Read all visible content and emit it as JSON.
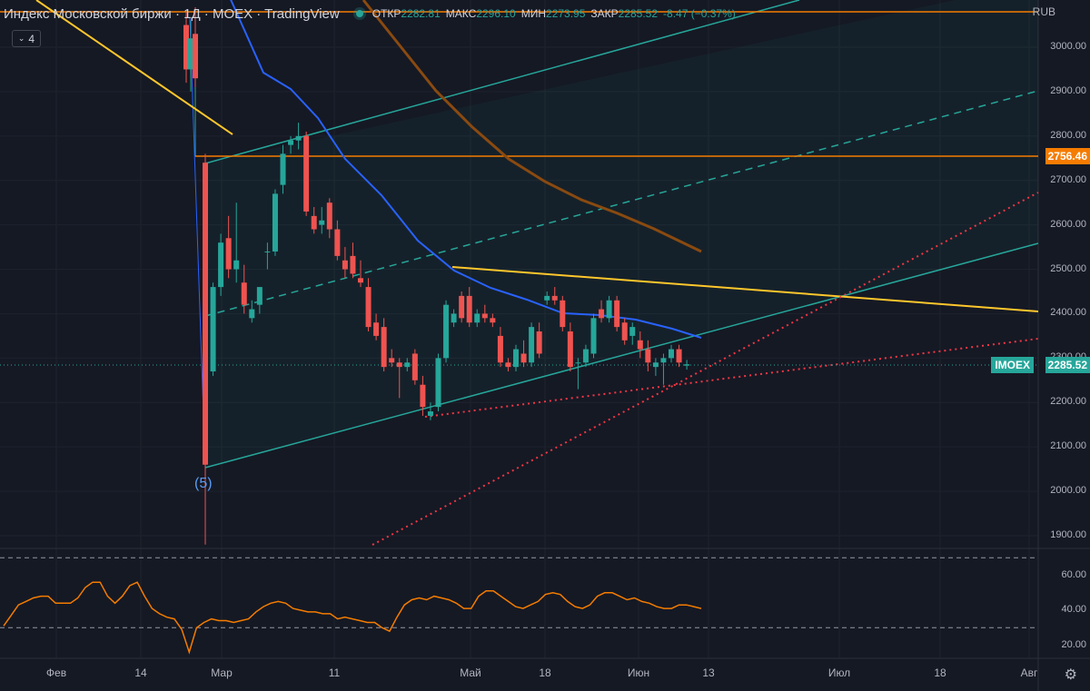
{
  "header": {
    "title": "Индекс Московской биржи · 1Д · MOEX · TradingView",
    "open_label": "ОТКР",
    "open": "2282.81",
    "high_label": "МАКС",
    "high": "2296.10",
    "low_label": "МИН",
    "low": "2273.95",
    "close_label": "ЗАКР",
    "close": "2285.52",
    "change": "-8.47 (−0.37%)",
    "indicators_count": "4"
  },
  "price_scale": {
    "unit": "RUB",
    "labels": [
      "3000.00",
      "2900.00",
      "2800.00",
      "2700.00",
      "2600.00",
      "2500.00",
      "2400.00",
      "2300.00",
      "2200.00",
      "2100.00",
      "2000.00",
      "1900.00"
    ],
    "level_tag": "2756.46",
    "symbol_tag": "IMOEX",
    "last_price_tag": "2285.52"
  },
  "rsi_scale": {
    "labels": [
      "60.00",
      "40.00",
      "20.00"
    ]
  },
  "time_axis": {
    "labels": [
      "Фев",
      "14",
      "Мар",
      "11",
      "Май",
      "18",
      "Июн",
      "13",
      "Июл",
      "18",
      "Авг"
    ]
  },
  "wave_label": "(5)",
  "colors": {
    "up": "#26a69a",
    "down": "#ef5350",
    "background": "#151924",
    "ma_fast": "#2962ff",
    "ma_slow": "#8a4a10",
    "level": "#f57c00",
    "trend_yellow": "#ffc72c",
    "channel": "#26a69a",
    "dotted": "#f23645",
    "rsi": "#f57c00"
  },
  "chart_data": [
    {
      "type": "candlestick",
      "title": "Индекс Московской биржи, 1Д, MOEX",
      "unit": "RUB",
      "ylim": [
        1880,
        3090
      ],
      "candles": [
        [
          3050,
          3080,
          2920,
          2950
        ],
        [
          2950,
          3060,
          2900,
          3020
        ],
        [
          3030,
          3090,
          2910,
          2930
        ],
        [
          2740,
          2760,
          1880,
          2060
        ],
        [
          2270,
          2470,
          2260,
          2460
        ],
        [
          2460,
          2580,
          2440,
          2560
        ],
        [
          2570,
          2620,
          2480,
          2500
        ],
        [
          2500,
          2650,
          2470,
          2520
        ],
        [
          2470,
          2510,
          2400,
          2420
        ],
        [
          2390,
          2430,
          2380,
          2410
        ],
        [
          2420,
          2460,
          2400,
          2460
        ],
        [
          2540,
          2560,
          2500,
          2540
        ],
        [
          2540,
          2680,
          2530,
          2670
        ],
        [
          2690,
          2780,
          2670,
          2760
        ],
        [
          2780,
          2800,
          2760,
          2790
        ],
        [
          2790,
          2830,
          2770,
          2800
        ],
        [
          2800,
          2810,
          2620,
          2630
        ],
        [
          2620,
          2640,
          2580,
          2590
        ],
        [
          2600,
          2640,
          2580,
          2610
        ],
        [
          2650,
          2660,
          2570,
          2590
        ],
        [
          2590,
          2610,
          2520,
          2530
        ],
        [
          2520,
          2550,
          2480,
          2500
        ],
        [
          2530,
          2560,
          2480,
          2490
        ],
        [
          2480,
          2520,
          2460,
          2470
        ],
        [
          2460,
          2480,
          2360,
          2370
        ],
        [
          2380,
          2400,
          2340,
          2350
        ],
        [
          2370,
          2390,
          2270,
          2280
        ],
        [
          2300,
          2320,
          2280,
          2290
        ],
        [
          2290,
          2300,
          2210,
          2280
        ],
        [
          2280,
          2300,
          2270,
          2290
        ],
        [
          2310,
          2320,
          2240,
          2250
        ],
        [
          2240,
          2260,
          2170,
          2190
        ],
        [
          2170,
          2200,
          2160,
          2180
        ],
        [
          2190,
          2310,
          2180,
          2300
        ],
        [
          2300,
          2430,
          2290,
          2420
        ],
        [
          2380,
          2410,
          2370,
          2400
        ],
        [
          2440,
          2450,
          2380,
          2390
        ],
        [
          2440,
          2460,
          2370,
          2380
        ],
        [
          2380,
          2410,
          2370,
          2400
        ],
        [
          2400,
          2420,
          2380,
          2390
        ],
        [
          2390,
          2400,
          2370,
          2380
        ],
        [
          2350,
          2370,
          2280,
          2290
        ],
        [
          2290,
          2300,
          2270,
          2280
        ],
        [
          2280,
          2330,
          2270,
          2320
        ],
        [
          2310,
          2340,
          2280,
          2290
        ],
        [
          2290,
          2380,
          2280,
          2370
        ],
        [
          2360,
          2380,
          2300,
          2310
        ],
        [
          2430,
          2450,
          2420,
          2440
        ],
        [
          2440,
          2460,
          2420,
          2430
        ],
        [
          2430,
          2440,
          2360,
          2370
        ],
        [
          2360,
          2380,
          2270,
          2280
        ],
        [
          2290,
          2300,
          2230,
          2290
        ],
        [
          2290,
          2330,
          2280,
          2320
        ],
        [
          2310,
          2400,
          2300,
          2390
        ],
        [
          2410,
          2430,
          2380,
          2390
        ],
        [
          2390,
          2440,
          2380,
          2430
        ],
        [
          2430,
          2440,
          2360,
          2370
        ],
        [
          2380,
          2390,
          2330,
          2340
        ],
        [
          2350,
          2380,
          2330,
          2370
        ],
        [
          2340,
          2360,
          2300,
          2320
        ],
        [
          2320,
          2340,
          2270,
          2290
        ],
        [
          2280,
          2300,
          2260,
          2290
        ],
        [
          2290,
          2310,
          2240,
          2300
        ],
        [
          2300,
          2330,
          2290,
          2320
        ],
        [
          2320,
          2330,
          2280,
          2290
        ],
        [
          2283,
          2296,
          2274,
          2286
        ]
      ],
      "last_price": 2285.52,
      "horizontal_levels": [
        3075,
        2756.46
      ]
    },
    {
      "type": "line",
      "name": "RSI",
      "ylim": [
        10,
        75
      ],
      "reference_levels": [
        70,
        30
      ],
      "values": [
        31,
        37,
        43,
        45,
        47,
        48,
        48,
        44,
        44,
        44,
        47,
        53,
        56,
        56,
        48,
        44,
        48,
        54,
        56,
        48,
        41,
        38,
        36,
        35,
        29,
        16,
        30,
        33,
        35,
        34,
        34,
        33,
        34,
        35,
        39,
        42,
        44,
        45,
        44,
        41,
        40,
        39,
        39,
        38,
        38,
        35,
        36,
        35,
        34,
        33,
        33,
        30,
        28,
        36,
        43,
        46,
        47,
        46,
        48,
        47,
        46,
        44,
        41,
        41,
        48,
        51,
        51,
        48,
        45,
        42,
        41,
        43,
        45,
        49,
        50,
        49,
        45,
        42,
        41,
        43,
        48,
        50,
        50,
        48,
        46,
        47,
        45,
        44,
        42,
        41,
        41,
        43,
        43,
        42,
        41
      ]
    }
  ]
}
